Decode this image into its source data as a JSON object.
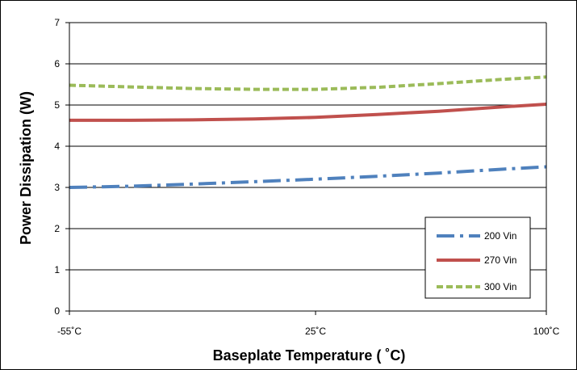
{
  "chart_data": {
    "type": "line",
    "xlabel": "Baseplate Temperature ( ˚C)",
    "ylabel": "Power Dissipation (W)",
    "x_tick_labels": [
      "-55˚C",
      "25˚C",
      "100˚C"
    ],
    "x_tick_values": [
      -55,
      25,
      100
    ],
    "xlim": [
      -55,
      100
    ],
    "ylim": [
      0,
      7
    ],
    "y_ticks": [
      0,
      1,
      2,
      3,
      4,
      5,
      6,
      7
    ],
    "grid": "horizontal",
    "legend_position": "bottom-right",
    "x": [
      -55,
      -35,
      -15,
      5,
      25,
      45,
      65,
      85,
      100
    ],
    "series": [
      {
        "name": "200 Vin",
        "color": "#4f81bd",
        "dash": "dash-dot",
        "values": [
          3.0,
          3.03,
          3.08,
          3.14,
          3.2,
          3.27,
          3.35,
          3.44,
          3.5
        ]
      },
      {
        "name": "270 Vin",
        "color": "#c0504d",
        "dash": "solid",
        "values": [
          4.63,
          4.63,
          4.64,
          4.66,
          4.7,
          4.77,
          4.85,
          4.95,
          5.02
        ]
      },
      {
        "name": "300 Vin",
        "color": "#9bbb59",
        "dash": "dashed",
        "values": [
          5.48,
          5.44,
          5.4,
          5.38,
          5.38,
          5.43,
          5.52,
          5.62,
          5.68
        ]
      }
    ]
  }
}
